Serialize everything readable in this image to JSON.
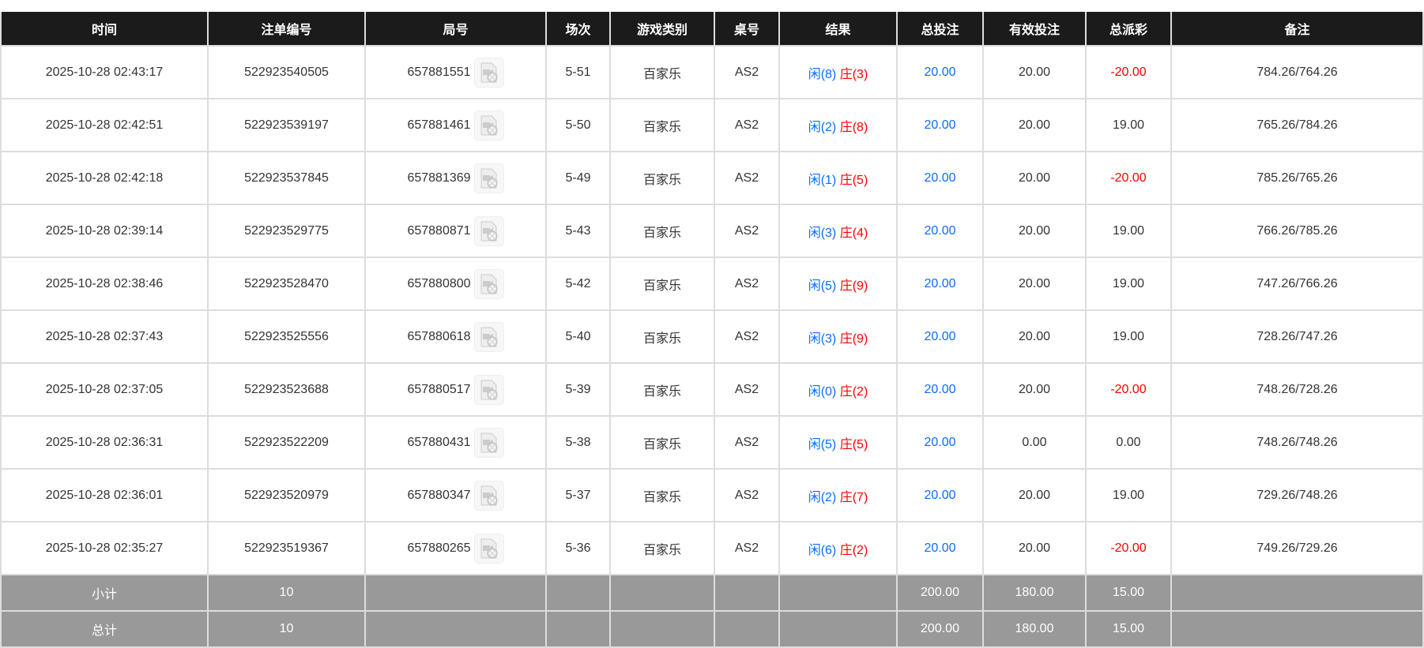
{
  "headers": [
    "时间",
    "注单编号",
    "局号",
    "场次",
    "游戏类别",
    "桌号",
    "结果",
    "总投注",
    "有效投注",
    "总派彩",
    "备注"
  ],
  "rows": [
    {
      "time": "2025-10-28 02:43:17",
      "bet_id": "522923540505",
      "round": "657881551",
      "shoe": "5-51",
      "game": "百家乐",
      "table": "AS2",
      "player": "闲(8)",
      "banker": "庄(3)",
      "total": "20.00",
      "valid": "20.00",
      "payout": "-20.00",
      "neg": true,
      "note": "784.26/764.26"
    },
    {
      "time": "2025-10-28 02:42:51",
      "bet_id": "522923539197",
      "round": "657881461",
      "shoe": "5-50",
      "game": "百家乐",
      "table": "AS2",
      "player": "闲(2)",
      "banker": "庄(8)",
      "total": "20.00",
      "valid": "20.00",
      "payout": "19.00",
      "neg": false,
      "note": "765.26/784.26"
    },
    {
      "time": "2025-10-28 02:42:18",
      "bet_id": "522923537845",
      "round": "657881369",
      "shoe": "5-49",
      "game": "百家乐",
      "table": "AS2",
      "player": "闲(1)",
      "banker": "庄(5)",
      "total": "20.00",
      "valid": "20.00",
      "payout": "-20.00",
      "neg": true,
      "note": "785.26/765.26"
    },
    {
      "time": "2025-10-28 02:39:14",
      "bet_id": "522923529775",
      "round": "657880871",
      "shoe": "5-43",
      "game": "百家乐",
      "table": "AS2",
      "player": "闲(3)",
      "banker": "庄(4)",
      "total": "20.00",
      "valid": "20.00",
      "payout": "19.00",
      "neg": false,
      "note": "766.26/785.26"
    },
    {
      "time": "2025-10-28 02:38:46",
      "bet_id": "522923528470",
      "round": "657880800",
      "shoe": "5-42",
      "game": "百家乐",
      "table": "AS2",
      "player": "闲(5)",
      "banker": "庄(9)",
      "total": "20.00",
      "valid": "20.00",
      "payout": "19.00",
      "neg": false,
      "note": "747.26/766.26"
    },
    {
      "time": "2025-10-28 02:37:43",
      "bet_id": "522923525556",
      "round": "657880618",
      "shoe": "5-40",
      "game": "百家乐",
      "table": "AS2",
      "player": "闲(3)",
      "banker": "庄(9)",
      "total": "20.00",
      "valid": "20.00",
      "payout": "19.00",
      "neg": false,
      "note": "728.26/747.26"
    },
    {
      "time": "2025-10-28 02:37:05",
      "bet_id": "522923523688",
      "round": "657880517",
      "shoe": "5-39",
      "game": "百家乐",
      "table": "AS2",
      "player": "闲(0)",
      "banker": "庄(2)",
      "total": "20.00",
      "valid": "20.00",
      "payout": "-20.00",
      "neg": true,
      "note": "748.26/728.26"
    },
    {
      "time": "2025-10-28 02:36:31",
      "bet_id": "522923522209",
      "round": "657880431",
      "shoe": "5-38",
      "game": "百家乐",
      "table": "AS2",
      "player": "闲(5)",
      "banker": "庄(5)",
      "total": "20.00",
      "valid": "0.00",
      "payout": "0.00",
      "neg": false,
      "note": "748.26/748.26"
    },
    {
      "time": "2025-10-28 02:36:01",
      "bet_id": "522923520979",
      "round": "657880347",
      "shoe": "5-37",
      "game": "百家乐",
      "table": "AS2",
      "player": "闲(2)",
      "banker": "庄(7)",
      "total": "20.00",
      "valid": "20.00",
      "payout": "19.00",
      "neg": false,
      "note": "729.26/748.26"
    },
    {
      "time": "2025-10-28 02:35:27",
      "bet_id": "522923519367",
      "round": "657880265",
      "shoe": "5-36",
      "game": "百家乐",
      "table": "AS2",
      "player": "闲(6)",
      "banker": "庄(2)",
      "total": "20.00",
      "valid": "20.00",
      "payout": "-20.00",
      "neg": true,
      "note": "749.26/729.26"
    }
  ],
  "summary": [
    {
      "label": "小计",
      "count": "10",
      "total": "200.00",
      "valid": "180.00",
      "payout": "15.00"
    },
    {
      "label": "总计",
      "count": "10",
      "total": "200.00",
      "valid": "180.00",
      "payout": "15.00"
    }
  ],
  "colors": {
    "header_bg": "#1b1b1b",
    "player": "#0a6cff",
    "banker": "#ff0000",
    "negative": "#ff0000",
    "summary_bg": "#999999"
  },
  "icons": {
    "replay": "video-file-icon"
  }
}
